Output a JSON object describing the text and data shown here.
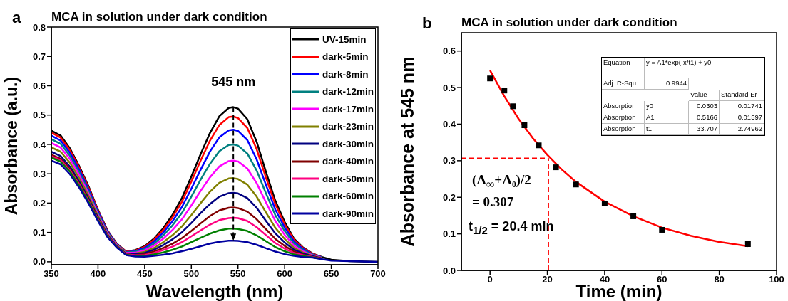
{
  "chart_data": [
    {
      "type": "line",
      "title": "MCA in solution under dark condition",
      "xlabel": "Wavelength (nm)",
      "ylabel": "Absorbance (a.u.)",
      "annotations": [
        "a",
        "545 nm"
      ],
      "x": [
        350,
        360,
        370,
        380,
        390,
        400,
        410,
        420,
        430,
        440,
        450,
        460,
        470,
        480,
        490,
        500,
        510,
        520,
        530,
        540,
        545,
        550,
        560,
        570,
        580,
        590,
        600,
        610,
        620,
        630,
        640,
        650,
        670,
        700
      ],
      "series": [
        {
          "name": "UV-15min",
          "color": "#000000",
          "values": [
            0.447,
            0.43,
            0.386,
            0.325,
            0.256,
            0.177,
            0.108,
            0.062,
            0.035,
            0.04,
            0.053,
            0.079,
            0.115,
            0.161,
            0.218,
            0.29,
            0.367,
            0.439,
            0.496,
            0.524,
            0.527,
            0.522,
            0.486,
            0.409,
            0.306,
            0.208,
            0.136,
            0.079,
            0.048,
            0.028,
            0.016,
            0.007,
            0.002,
            0
          ]
        },
        {
          "name": "dark-5min",
          "color": "#ff0000",
          "values": [
            0.44,
            0.423,
            0.38,
            0.32,
            0.252,
            0.175,
            0.106,
            0.061,
            0.035,
            0.038,
            0.051,
            0.075,
            0.109,
            0.152,
            0.205,
            0.273,
            0.345,
            0.413,
            0.466,
            0.493,
            0.495,
            0.49,
            0.456,
            0.384,
            0.287,
            0.196,
            0.128,
            0.075,
            0.046,
            0.027,
            0.015,
            null,
            null,
            null
          ]
        },
        {
          "name": "dark-8min",
          "color": "#0000ff",
          "values": [
            0.43,
            0.413,
            0.371,
            0.313,
            0.246,
            0.171,
            0.104,
            0.06,
            0.033,
            0.036,
            0.047,
            0.069,
            0.1,
            0.139,
            0.187,
            0.249,
            0.314,
            0.376,
            0.424,
            0.448,
            0.45,
            0.446,
            0.415,
            0.349,
            0.262,
            0.178,
            0.117,
            0.069,
            0.043,
            0.025,
            0.015,
            null,
            null,
            null
          ]
        },
        {
          "name": "dark-12min",
          "color": "#008080",
          "values": [
            0.418,
            0.402,
            0.361,
            0.304,
            0.239,
            0.166,
            0.101,
            0.059,
            0.032,
            0.034,
            0.043,
            0.062,
            0.09,
            0.125,
            0.167,
            0.222,
            0.28,
            0.334,
            0.377,
            0.398,
            0.4,
            0.396,
            0.369,
            0.311,
            0.233,
            0.159,
            0.105,
            0.062,
            0.039,
            0.024,
            0.014,
            null,
            null,
            null
          ]
        },
        {
          "name": "dark-17min",
          "color": "#ff00ff",
          "values": [
            0.405,
            0.389,
            0.35,
            0.295,
            0.232,
            0.161,
            0.098,
            0.057,
            0.03,
            0.031,
            0.039,
            0.055,
            0.079,
            0.109,
            0.145,
            0.192,
            0.242,
            0.288,
            0.325,
            0.343,
            0.345,
            0.342,
            0.318,
            0.268,
            0.202,
            0.139,
            0.092,
            0.055,
            0.035,
            0.022,
            0.013,
            null,
            null,
            null
          ]
        },
        {
          "name": "dark-23min",
          "color": "#808000",
          "values": [
            0.39,
            0.375,
            0.337,
            0.284,
            0.224,
            0.156,
            0.095,
            0.055,
            0.029,
            0.028,
            0.034,
            0.047,
            0.067,
            0.091,
            0.121,
            0.159,
            0.2,
            0.239,
            0.269,
            0.284,
            0.285,
            0.282,
            0.263,
            0.222,
            0.168,
            0.116,
            0.078,
            0.047,
            0.031,
            0.02,
            0.012,
            null,
            null,
            null
          ]
        },
        {
          "name": "dark-30min",
          "color": "#000080",
          "values": [
            0.375,
            0.36,
            0.324,
            0.273,
            0.215,
            0.15,
            0.092,
            0.053,
            0.027,
            0.026,
            0.03,
            0.041,
            0.057,
            0.077,
            0.101,
            0.132,
            0.166,
            0.197,
            0.222,
            0.234,
            0.235,
            0.233,
            0.217,
            0.184,
            0.139,
            0.097,
            0.066,
            0.041,
            0.028,
            0.019,
            0.011,
            null,
            null,
            null
          ]
        },
        {
          "name": "dark-40min",
          "color": "#800000",
          "values": [
            0.365,
            0.351,
            0.316,
            0.266,
            0.21,
            0.146,
            0.09,
            0.052,
            0.026,
            0.023,
            0.026,
            0.035,
            0.047,
            0.062,
            0.081,
            0.105,
            0.131,
            0.156,
            0.175,
            0.184,
            0.185,
            0.183,
            0.171,
            0.145,
            0.111,
            0.078,
            0.054,
            0.035,
            0.024,
            0.017,
            0.011,
            null,
            null,
            null
          ]
        },
        {
          "name": "dark-50min",
          "color": "#ff0080",
          "values": [
            0.36,
            0.346,
            0.311,
            0.263,
            0.207,
            0.144,
            0.089,
            0.051,
            0.025,
            0.022,
            0.023,
            0.03,
            0.04,
            0.052,
            0.067,
            0.087,
            0.107,
            0.127,
            0.142,
            0.149,
            0.15,
            0.149,
            0.139,
            0.118,
            0.091,
            0.064,
            0.045,
            0.03,
            0.022,
            0.016,
            0.01,
            null,
            null,
            null
          ]
        },
        {
          "name": "dark-60min",
          "color": "#008000",
          "values": [
            0.355,
            0.341,
            0.307,
            0.259,
            0.204,
            0.142,
            0.087,
            0.05,
            0.024,
            0.02,
            0.02,
            0.025,
            0.032,
            0.041,
            0.052,
            0.067,
            0.082,
            0.096,
            0.107,
            0.113,
            0.113,
            0.112,
            0.105,
            0.09,
            0.07,
            0.05,
            0.036,
            0.025,
            0.019,
            0.015,
            0.01,
            null,
            null,
            null
          ]
        },
        {
          "name": "dark-90min",
          "color": "#0000a0",
          "values": [
            0.345,
            0.332,
            0.298,
            0.252,
            0.198,
            0.139,
            0.085,
            0.049,
            0.023,
            0.018,
            0.017,
            0.02,
            0.024,
            0.029,
            0.036,
            0.044,
            0.053,
            0.062,
            0.068,
            0.072,
            0.072,
            0.071,
            0.067,
            0.058,
            0.046,
            0.035,
            0.026,
            0.02,
            0.016,
            0.014,
            0.009,
            0.004,
            0.002,
            0
          ]
        }
      ],
      "xlim": [
        350,
        700
      ],
      "xticks": [
        350,
        400,
        450,
        500,
        550,
        600,
        650,
        700
      ],
      "ylim": [
        -0.01,
        0.8
      ],
      "yticks": [
        {
          "value": 0,
          "label": "0.0"
        },
        {
          "value": 0.1,
          "label": "0.1"
        },
        {
          "value": 0.2,
          "label": "0.2"
        },
        {
          "value": 0.3,
          "label": "0.3"
        },
        {
          "value": 0.4,
          "label": "0.4"
        },
        {
          "value": 0.5,
          "label": "0.5"
        },
        {
          "value": 0.6,
          "label": "0.6"
        },
        {
          "value": 0.7,
          "label": "0.7"
        },
        {
          "value": 0.8,
          "label": "0.8"
        }
      ],
      "legend": "top right",
      "line_style": "solid"
    },
    {
      "type": "scatter",
      "title": "MCA in solution under dark condition",
      "xlabel": "Time (min)",
      "ylabel": "Absorbance at 545 nm",
      "annotations": [
        "b",
        "(A$_{∞}$+A₀)/2",
        "= 0.307",
        "t$_{1/2}$ = 20.4 min",
        "Equation",
        "y = A1*exp(-x/t1) + y0",
        "Adj. R-Squ",
        "0.9944",
        "Value",
        "Standard Er",
        "Absorption",
        "y0",
        "0.0303",
        "0.01741",
        "Absorption",
        "A1",
        "0.5166",
        "0.01597",
        "Absorption",
        "t1",
        "33.707",
        "2.74962"
      ],
      "series": [
        {
          "color": "#000000",
          "marker": "square",
          "x": [
            0,
            5,
            8,
            12,
            17,
            23,
            30,
            40,
            50,
            60,
            90
          ],
          "values": [
            0.525,
            0.492,
            0.449,
            0.397,
            0.342,
            0.282,
            0.235,
            0.183,
            0.148,
            0.111,
            0.072
          ]
        },
        {
          "type": "line",
          "color": "#ff0000",
          "x": [
            0,
            5,
            10,
            15,
            20,
            25,
            30,
            40,
            50,
            60,
            70,
            80,
            90
          ],
          "values": [
            0.547,
            0.476,
            0.414,
            0.361,
            0.316,
            0.276,
            0.242,
            0.188,
            0.148,
            0.117,
            0.095,
            0.078,
            0.066
          ]
        }
      ],
      "ref_lines": [
        {
          "axis": "y",
          "value": 0.307,
          "color": "#ff0000",
          "line_style": "dashed"
        },
        {
          "axis": "x",
          "value": 20.4,
          "color": "#ff0000",
          "line_style": "dashed"
        }
      ],
      "xlim": [
        -10,
        100
      ],
      "xticks": [
        0,
        20,
        40,
        60,
        80,
        100
      ],
      "ylim": [
        0,
        0.65
      ],
      "yticks": [
        {
          "value": 0,
          "label": "0.0"
        },
        {
          "value": 0.1,
          "label": "0.1"
        },
        {
          "value": 0.2,
          "label": "0.2"
        },
        {
          "value": 0.3,
          "label": "0.3"
        },
        {
          "value": 0.4,
          "label": "0.4"
        },
        {
          "value": 0.5,
          "label": "0.5"
        },
        {
          "value": 0.6,
          "label": "0.6"
        }
      ],
      "line_style": "solid"
    }
  ]
}
